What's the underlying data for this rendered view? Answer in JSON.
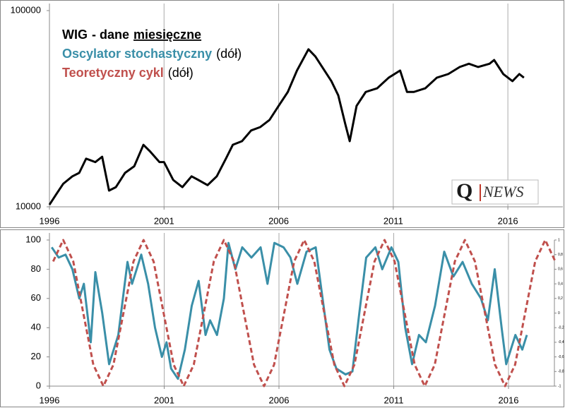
{
  "chart_data": [
    {
      "type": "line",
      "log_scale_y": true,
      "xlim": [
        1996,
        2018.4
      ],
      "xticks": [
        1996,
        2001,
        2006,
        2011,
        2016
      ],
      "grid": "x",
      "ylim": [
        10000,
        100000
      ],
      "yticks": [
        10000,
        100000
      ],
      "legend_note": [
        "- dane",
        "miesięczne"
      ],
      "series": [
        {
          "name": "WIG",
          "color": "#000000",
          "x": [
            1996.0,
            1996.3,
            1996.6,
            1997.0,
            1997.3,
            1997.6,
            1998.0,
            1998.3,
            1998.6,
            1998.9,
            1999.3,
            1999.7,
            2000.1,
            2000.4,
            2000.8,
            2001.0,
            2001.4,
            2001.8,
            2002.2,
            2002.5,
            2002.9,
            2003.3,
            2003.7,
            2004.0,
            2004.4,
            2004.8,
            2005.2,
            2005.6,
            2006.0,
            2006.4,
            2006.8,
            2007.3,
            2007.6,
            2007.9,
            2008.3,
            2008.6,
            2008.9,
            2009.1,
            2009.4,
            2009.8,
            2010.3,
            2010.8,
            2011.3,
            2011.6,
            2011.9,
            2012.4,
            2012.9,
            2013.4,
            2013.9,
            2014.3,
            2014.7,
            2015.2,
            2015.4,
            2015.8,
            2016.2,
            2016.5,
            2016.7
          ],
          "values": [
            10250,
            11600,
            13100,
            14300,
            14900,
            17600,
            16900,
            18000,
            12100,
            12600,
            14900,
            16100,
            20700,
            19100,
            16900,
            16900,
            13700,
            12600,
            14300,
            13700,
            12900,
            14300,
            17600,
            20700,
            21600,
            24500,
            25500,
            27700,
            32700,
            38500,
            49500,
            63500,
            58400,
            51600,
            43700,
            37000,
            26600,
            21600,
            32700,
            38500,
            40200,
            45500,
            49500,
            38500,
            38500,
            40200,
            45500,
            47500,
            51600,
            53600,
            51600,
            53600,
            56000,
            47500,
            43700,
            47500,
            45500
          ]
        }
      ]
    },
    {
      "type": "line",
      "xlim": [
        1996,
        2018.0
      ],
      "xticks": [
        1996,
        2001,
        2006,
        2011,
        2016
      ],
      "grid": "x",
      "ylim": [
        0,
        100
      ],
      "yticks": [
        0,
        20,
        40,
        60,
        80,
        100
      ],
      "y2lim": [
        -1,
        1
      ],
      "y2ticks": [
        1,
        {
          "value": 0.8,
          "label": "0,8"
        },
        {
          "value": 0.6,
          "label": "0,6"
        },
        {
          "value": 0.4,
          "label": "0,4"
        },
        {
          "value": 0.2,
          "label": "0,2"
        },
        0,
        {
          "value": -0.2,
          "label": "-0,2"
        },
        {
          "value": -0.4,
          "label": "-0,4"
        },
        {
          "value": -0.6,
          "label": "-0,6"
        },
        {
          "value": -0.8,
          "label": "-0,8"
        },
        -1
      ],
      "series": [
        {
          "name": "Oscylator stochastyczny",
          "note": "(dół)",
          "color": "#3a8fa8",
          "x": [
            1996.1,
            1996.4,
            1996.7,
            1997.0,
            1997.3,
            1997.5,
            1997.8,
            1998.0,
            1998.3,
            1998.6,
            1999.0,
            1999.4,
            1999.6,
            2000.0,
            2000.3,
            2000.6,
            2000.9,
            2001.1,
            2001.3,
            2001.6,
            2001.9,
            2002.2,
            2002.5,
            2002.8,
            2003.0,
            2003.3,
            2003.6,
            2003.8,
            2004.1,
            2004.4,
            2004.8,
            2005.2,
            2005.5,
            2005.8,
            2006.2,
            2006.5,
            2006.8,
            2007.2,
            2007.6,
            2007.9,
            2008.2,
            2008.5,
            2008.9,
            2009.2,
            2009.5,
            2009.8,
            2010.2,
            2010.5,
            2010.9,
            2011.2,
            2011.5,
            2011.8,
            2012.1,
            2012.4,
            2012.8,
            2013.2,
            2013.6,
            2014.0,
            2014.4,
            2014.8,
            2015.1,
            2015.4,
            2015.7,
            2015.9,
            2016.3,
            2016.6,
            2016.8
          ],
          "values": [
            95,
            88,
            90,
            80,
            60,
            70,
            30,
            78,
            50,
            15,
            35,
            85,
            70,
            90,
            70,
            40,
            20,
            30,
            12,
            5,
            25,
            55,
            72,
            35,
            45,
            35,
            60,
            98,
            80,
            95,
            88,
            95,
            70,
            98,
            95,
            88,
            70,
            92,
            95,
            60,
            25,
            12,
            8,
            10,
            50,
            88,
            95,
            80,
            95,
            85,
            40,
            15,
            35,
            30,
            55,
            92,
            75,
            85,
            70,
            60,
            45,
            80,
            40,
            15,
            35,
            25,
            35
          ]
        },
        {
          "name": "Teoretyczny cykl",
          "note": "(dół)",
          "color": "#c0504d",
          "axis": "y2",
          "dashed": true,
          "x": [
            1996.1625,
            1996.6,
            1997.0375,
            1997.475,
            1997.9125,
            1998.35,
            1998.7875,
            1999.225,
            1999.6625,
            2000.1,
            2000.5375,
            2000.975,
            2001.4125,
            2001.85,
            2002.2875,
            2002.725,
            2003.1625,
            2003.6,
            2004.0375,
            2004.475,
            2004.9125,
            2005.35,
            2005.7875,
            2006.225,
            2006.6625,
            2007.1,
            2007.5375,
            2007.975,
            2008.4125,
            2008.85,
            2009.2875,
            2009.725,
            2010.1625,
            2010.6,
            2011.0375,
            2011.475,
            2011.9125,
            2012.35,
            2012.7875,
            2013.225,
            2013.6625,
            2014.1,
            2014.5375,
            2014.975,
            2015.4125,
            2015.85,
            2016.2875,
            2016.725,
            2017.1625,
            2017.6,
            2018.0375
          ],
          "values": [
            0.707,
            1,
            0.707,
            0,
            -0.707,
            -1,
            -0.707,
            0,
            0.707,
            1,
            0.707,
            0,
            -0.707,
            -1,
            -0.707,
            0,
            0.707,
            1,
            0.707,
            0,
            -0.707,
            -1,
            -0.707,
            0,
            0.707,
            1,
            0.707,
            0,
            -0.707,
            -1,
            -0.707,
            0,
            0.707,
            1,
            0.707,
            0,
            -0.707,
            -1,
            -0.707,
            0,
            0.707,
            1,
            0.707,
            0,
            -0.707,
            -1,
            -0.707,
            0,
            0.707,
            1,
            0.707
          ]
        }
      ]
    }
  ],
  "logo": {
    "q": "Q",
    "news": "NEWS"
  }
}
